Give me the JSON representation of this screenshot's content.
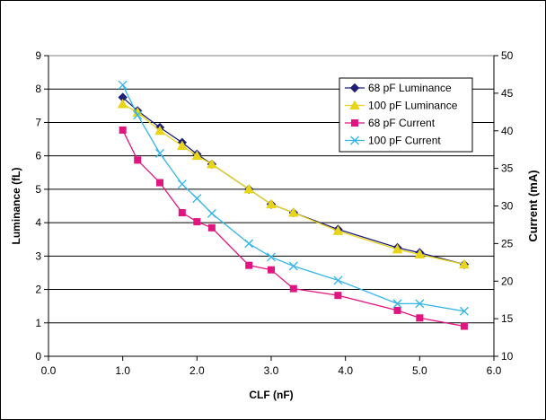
{
  "chart_data": {
    "type": "line",
    "title": "",
    "xlabel": "CLF (nF)",
    "ylabel": "Luminance (fL)",
    "y2label": "Current (mA)",
    "xlim": [
      0,
      6
    ],
    "ylim": [
      0,
      9
    ],
    "y2lim": [
      10,
      50
    ],
    "xticks": [
      "0.0",
      "1.0",
      "2.0",
      "3.0",
      "4.0",
      "5.0",
      "6.0"
    ],
    "yticks": [
      "0",
      "1",
      "2",
      "3",
      "4",
      "5",
      "6",
      "7",
      "8",
      "9"
    ],
    "y2ticks": [
      "10",
      "15",
      "20",
      "25",
      "30",
      "35",
      "40",
      "45",
      "50"
    ],
    "grid": true,
    "legend_position": "top-right",
    "series": [
      {
        "name": "68 pF Luminance",
        "axis": "left",
        "color": "#1f1f7a",
        "marker": "diamond",
        "x": [
          1.0,
          1.2,
          1.5,
          1.8,
          2.0,
          2.2,
          2.7,
          3.0,
          3.3,
          3.9,
          4.7,
          5.0,
          5.6
        ],
        "y": [
          7.75,
          7.35,
          6.85,
          6.4,
          6.05,
          5.75,
          5.0,
          4.55,
          4.3,
          3.8,
          3.25,
          3.1,
          2.75
        ]
      },
      {
        "name": "100 pF Luminance",
        "axis": "left",
        "color": "#e8d51a",
        "marker": "triangle",
        "x": [
          1.0,
          1.2,
          1.5,
          1.8,
          2.0,
          2.2,
          2.7,
          3.0,
          3.3,
          3.9,
          4.7,
          5.0,
          5.6
        ],
        "y": [
          7.55,
          7.3,
          6.75,
          6.3,
          6.0,
          5.75,
          5.0,
          4.55,
          4.3,
          3.75,
          3.2,
          3.05,
          2.75
        ]
      },
      {
        "name": "68 pF Current",
        "axis": "right",
        "color": "#e0157f",
        "marker": "square",
        "x": [
          1.0,
          1.2,
          1.5,
          1.8,
          2.0,
          2.2,
          2.7,
          3.0,
          3.3,
          3.9,
          4.7,
          5.0,
          5.6
        ],
        "y": [
          40.1,
          36.1,
          33.1,
          29.1,
          27.9,
          27.1,
          22.1,
          21.5,
          19.0,
          18.1,
          16.1,
          15.1,
          14.0
        ]
      },
      {
        "name": "100 pF Current",
        "axis": "right",
        "color": "#33b5e8",
        "marker": "x",
        "x": [
          1.0,
          1.2,
          1.5,
          1.8,
          2.0,
          2.2,
          2.7,
          3.0,
          3.3,
          3.9,
          4.7,
          5.0,
          5.6
        ],
        "y": [
          46.1,
          42.1,
          37.0,
          32.9,
          31.0,
          29.0,
          25.0,
          23.2,
          22.0,
          20.1,
          17.0,
          17.0,
          16.0
        ]
      }
    ]
  }
}
